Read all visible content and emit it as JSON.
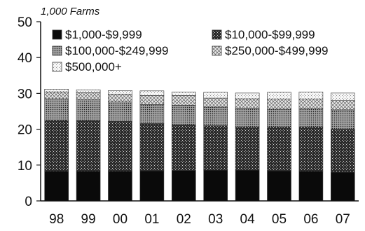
{
  "chart_data": {
    "type": "bar",
    "stacked": true,
    "unit_label": "1,000 Farms",
    "categories": [
      "98",
      "99",
      "00",
      "01",
      "02",
      "03",
      "04",
      "05",
      "06",
      "07"
    ],
    "ylim": [
      0,
      50
    ],
    "yticks": [
      0,
      10,
      20,
      30,
      40,
      50
    ],
    "grid": false,
    "legend_position": "top",
    "series": [
      {
        "name": "$1,000-$9,999",
        "fill": "black",
        "values": [
          8.3,
          8.3,
          8.3,
          8.4,
          8.5,
          8.6,
          8.6,
          8.4,
          8.3,
          8.0
        ]
      },
      {
        "name": "$10,000-$99,999",
        "fill": "dark-crosshatch",
        "values": [
          14.2,
          14.1,
          13.9,
          13.2,
          12.7,
          12.4,
          12.0,
          12.2,
          12.3,
          12.0
        ]
      },
      {
        "name": "$100,000-$249,999",
        "fill": "medium-dots",
        "values": [
          6.0,
          5.8,
          5.4,
          5.3,
          5.5,
          5.2,
          5.3,
          5.0,
          5.1,
          5.4
        ]
      },
      {
        "name": "$250,000-$499,999",
        "fill": "light-crosshatch",
        "values": [
          1.9,
          2.0,
          2.2,
          2.5,
          2.7,
          2.5,
          2.6,
          2.8,
          2.7,
          2.6
        ]
      },
      {
        "name": "$500,000+",
        "fill": "light-dots",
        "values": [
          0.8,
          0.8,
          1.0,
          1.3,
          1.0,
          1.6,
          1.6,
          1.9,
          2.0,
          2.1
        ]
      }
    ]
  }
}
